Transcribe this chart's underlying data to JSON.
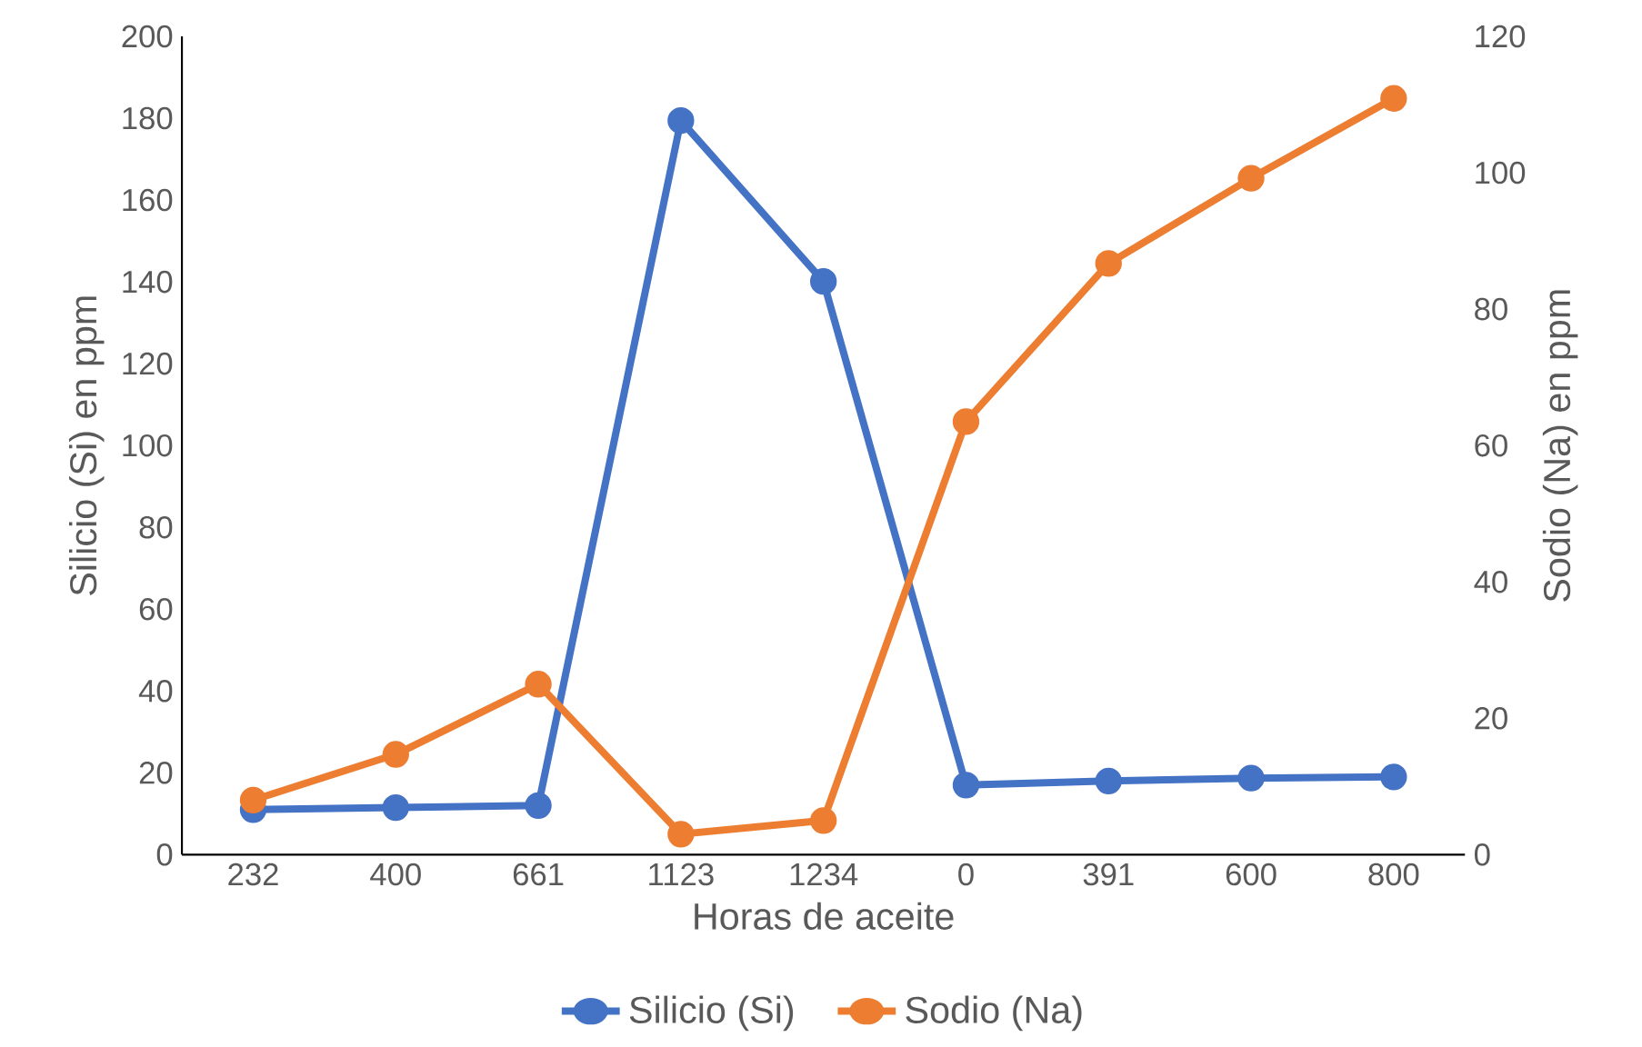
{
  "chart_data": {
    "type": "line",
    "xlabel": "Horas de aceite",
    "ylabel": "Silicio (Si) en ppm",
    "y2label": "Sodio (Na) en ppm",
    "categories": [
      "232",
      "400",
      "661",
      "1123",
      "1234",
      "0",
      "391",
      "600",
      "800"
    ],
    "series": [
      {
        "name": "Silicio (Si)",
        "color": "#4472c4",
        "values": [
          11,
          11.5,
          12,
          179.4,
          140.1,
          17,
          18,
          18.7,
          19
        ]
      },
      {
        "name": "Sodio (Na)",
        "color": "#ed7d31",
        "axis": "y2",
        "values": [
          8,
          14.7,
          25,
          3,
          5,
          63.5,
          86.7,
          99.2,
          110.9
        ]
      }
    ],
    "ylim": [
      0,
      200
    ],
    "yticks": [
      0,
      20,
      40,
      60,
      80,
      100,
      120,
      140,
      160,
      180,
      200
    ],
    "y2lim": [
      0,
      120
    ],
    "y2ticks": [
      0,
      20,
      40,
      60,
      80,
      100,
      120
    ],
    "legend": "bottom",
    "marker": "circle",
    "line_style": "solid"
  }
}
